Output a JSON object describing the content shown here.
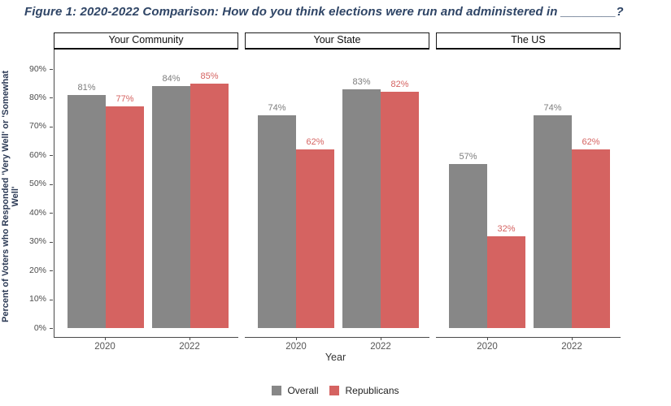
{
  "figure": {
    "title": "Figure 1: 2020-2022 Comparison: How do you think elections were run and administered in ________?"
  },
  "chart_data": {
    "type": "bar",
    "title": "Figure 1: 2020-2022 Comparison: How do you think elections were run and administered in ________?",
    "xlabel": "Year",
    "ylabel": "Percent of Voters who Responded 'Very Well' or 'Somewhat Well'",
    "categories": [
      "2020",
      "2022"
    ],
    "yticks": [
      0,
      10,
      20,
      30,
      40,
      50,
      60,
      70,
      80,
      90
    ],
    "ytick_suffix": "%",
    "ylim": [
      0,
      90
    ],
    "grid": false,
    "legend_position": "bottom",
    "facets": [
      {
        "label": "Your Community",
        "series": [
          {
            "name": "Overall",
            "values": [
              81,
              84
            ]
          },
          {
            "name": "Republicans",
            "values": [
              77,
              85
            ]
          }
        ]
      },
      {
        "label": "Your State",
        "series": [
          {
            "name": "Overall",
            "values": [
              74,
              83
            ]
          },
          {
            "name": "Republicans",
            "values": [
              62,
              82
            ]
          }
        ]
      },
      {
        "label": "The US",
        "series": [
          {
            "name": "Overall",
            "values": [
              57,
              74
            ]
          },
          {
            "name": "Republicans",
            "values": [
              32,
              62
            ]
          }
        ]
      }
    ],
    "series_colors": {
      "Overall": "#878787",
      "Republicans": "#D56361"
    },
    "value_label_colors": {
      "Overall": "#7D7D7D",
      "Republicans": "#D56361"
    },
    "value_label_format": "{v}%"
  },
  "legend": {
    "items": [
      {
        "label": "Overall",
        "color": "#878787"
      },
      {
        "label": "Republicans",
        "color": "#D56361"
      }
    ]
  }
}
